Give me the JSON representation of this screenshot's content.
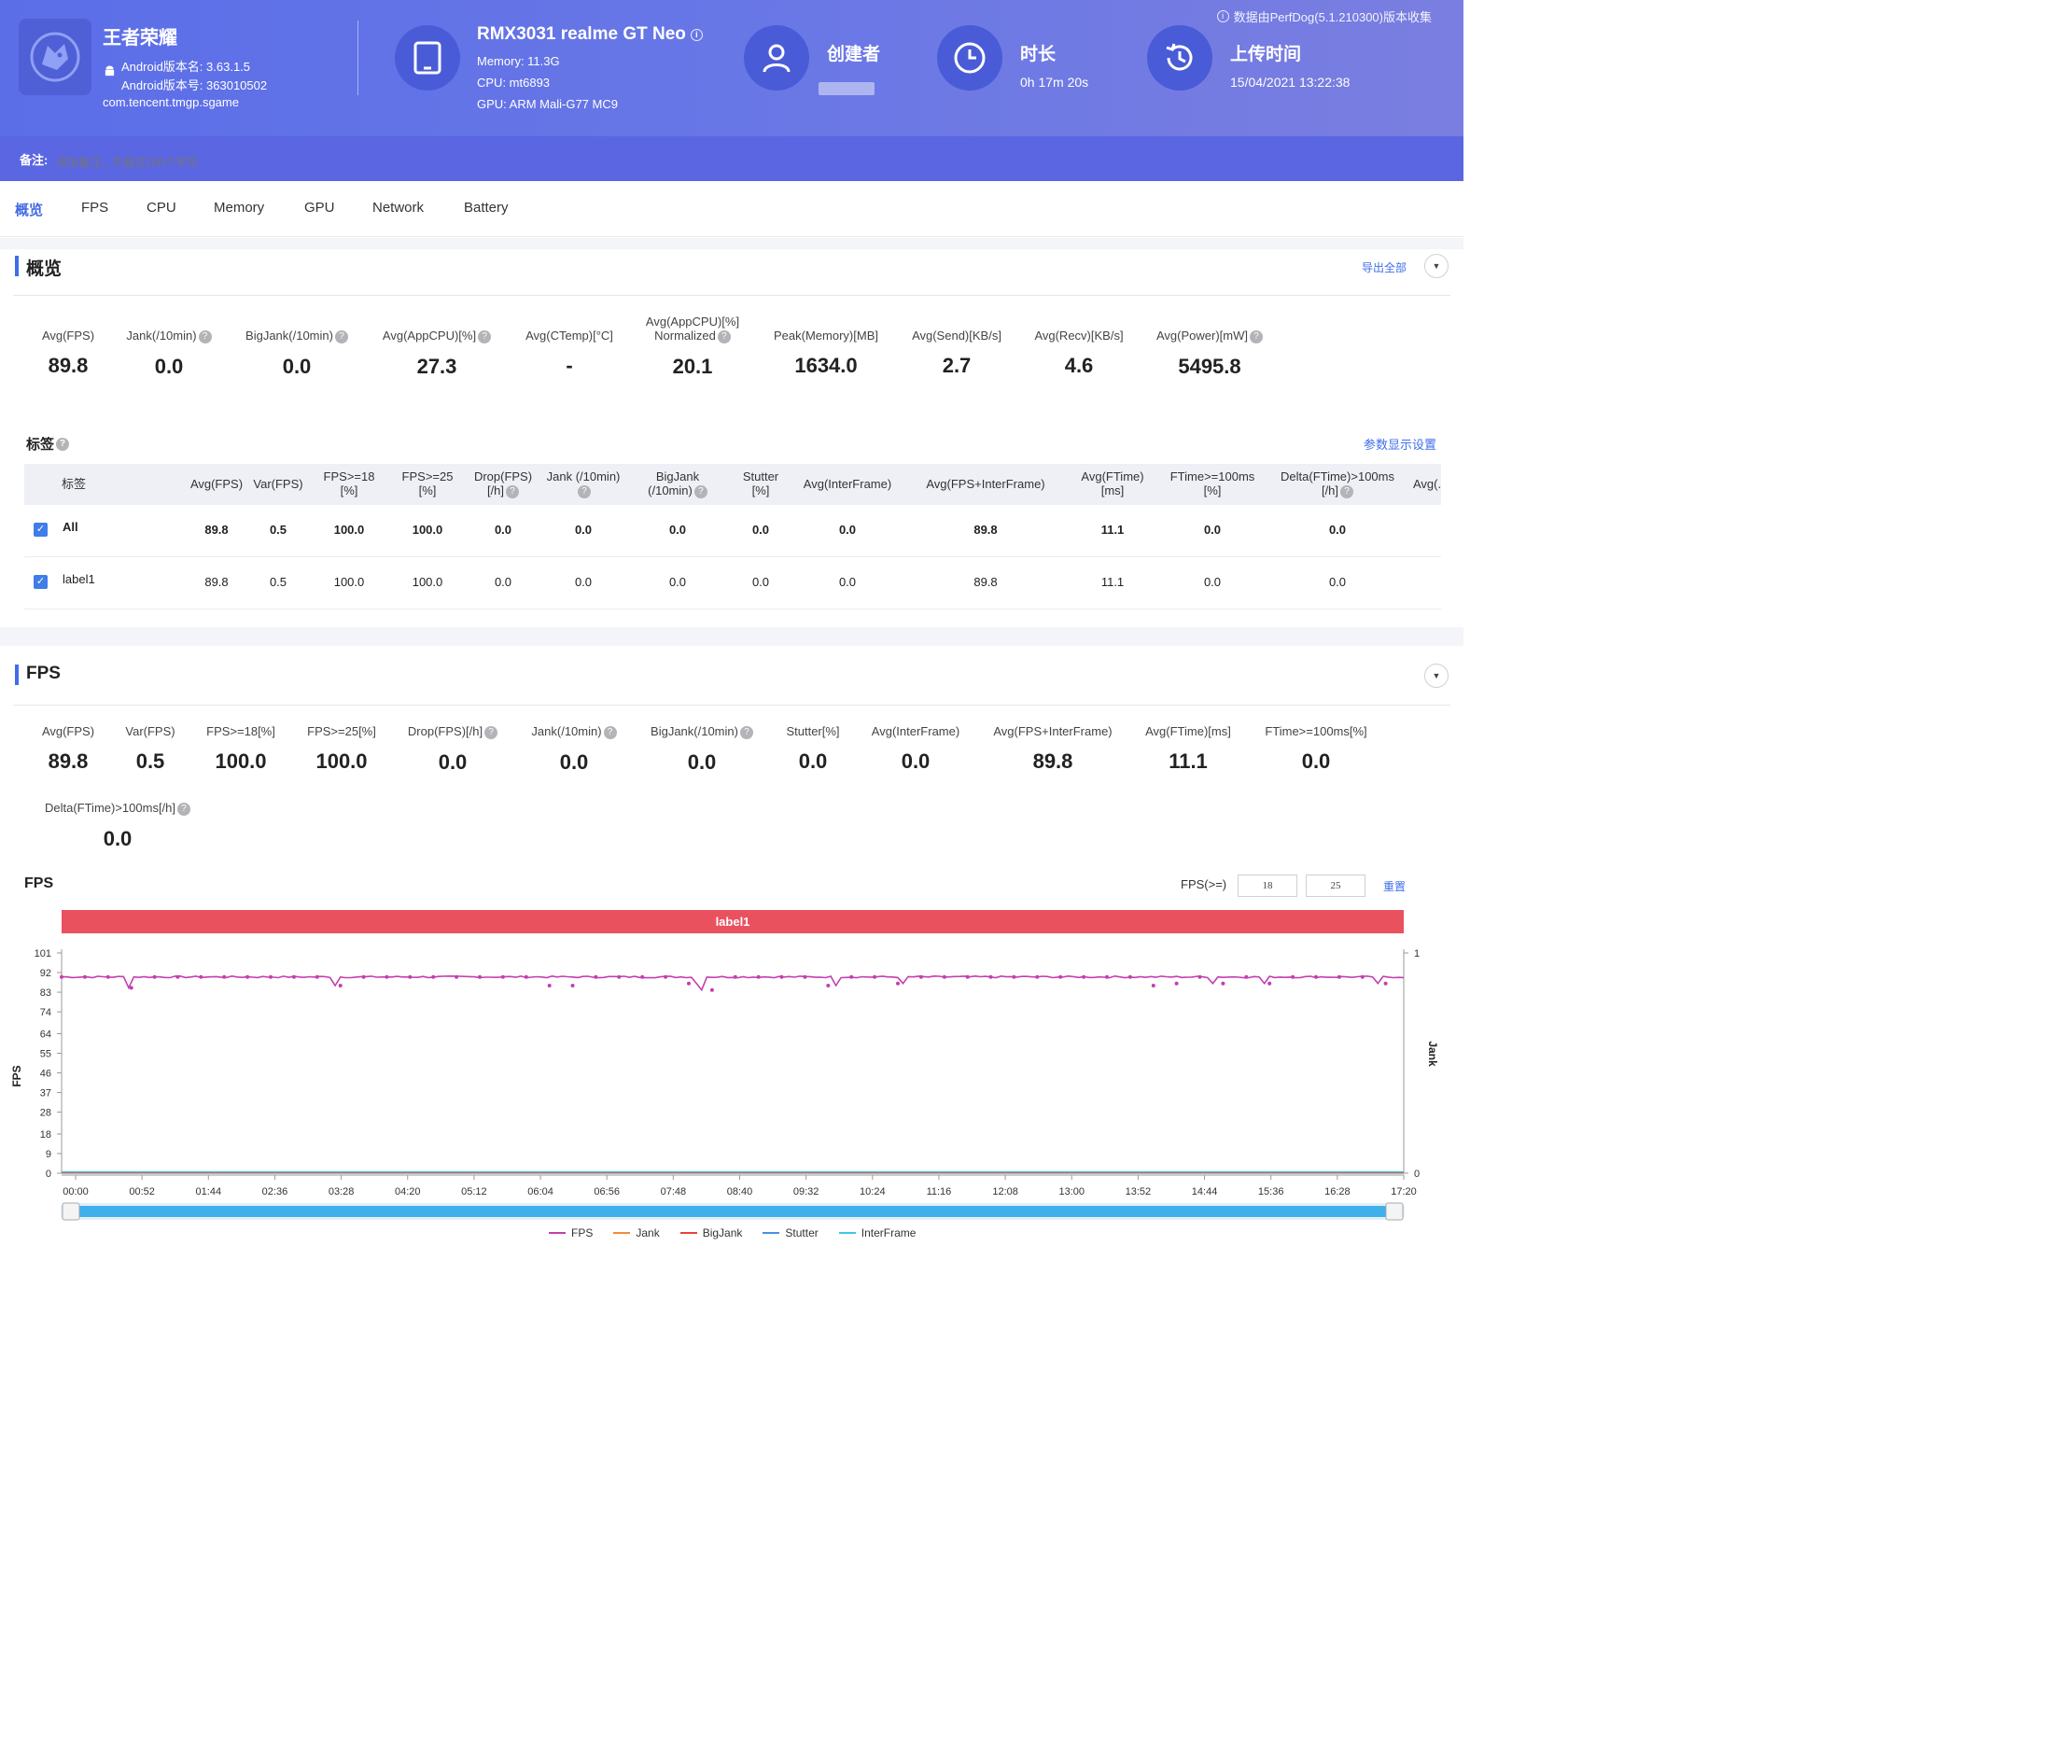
{
  "header": {
    "app_name": "王者荣耀",
    "version_name": "Android版本名: 3.63.1.5",
    "version_code": "Android版本号: 363010502",
    "package": "com.tencent.tmgp.sgame",
    "device_model": "RMX3031 realme GT Neo",
    "memory": "Memory: 11.3G",
    "cpu": "CPU: mt6893",
    "gpu": "GPU: ARM Mali-G77 MC9",
    "creator_label": "创建者",
    "duration_label": "时长",
    "duration_value": "0h 17m 20s",
    "upload_label": "上传时间",
    "upload_value": "15/04/2021 13:22:38",
    "notice": "数据由PerfDog(5.1.210300)版本收集",
    "note_label": "备注:",
    "note_placeholder": "添加备注，不超过200个字符"
  },
  "tabs": [
    "概览",
    "FPS",
    "CPU",
    "Memory",
    "GPU",
    "Network",
    "Battery"
  ],
  "overview": {
    "title": "概览",
    "export_all": "导出全部",
    "stats": [
      {
        "label": "Avg(FPS)",
        "value": "89.8"
      },
      {
        "label": "Jank(/10min)",
        "value": "0.0"
      },
      {
        "label": "BigJank(/10min)",
        "value": "0.0"
      },
      {
        "label": "Avg(AppCPU)[%]",
        "value": "27.3"
      },
      {
        "label": "Avg(CTemp)[°C]",
        "value": "-"
      },
      {
        "label": "Avg(AppCPU)[%]",
        "label2": "Normalized",
        "value": "20.1"
      },
      {
        "label": "Peak(Memory)[MB]",
        "value": "1634.0"
      },
      {
        "label": "Avg(Send)[KB/s]",
        "value": "2.7"
      },
      {
        "label": "Avg(Recv)[KB/s]",
        "value": "4.6"
      },
      {
        "label": "Avg(Power)[mW]",
        "value": "5495.8"
      }
    ],
    "tags_title": "标签",
    "display_settings": "参数显示设置",
    "table": {
      "columns": [
        "标签",
        "Avg(FPS)",
        "Var(FPS)",
        "FPS>=18\n[%]",
        "FPS>=25\n[%]",
        "Drop(FPS)\n[/h]",
        "Jank (/10min)",
        "BigJank\n(/10min)",
        "Stutter\n[%]",
        "Avg(InterFrame)",
        "Avg(FPS+InterFrame)",
        "Avg(FTime)\n[ms]",
        "FTime>=100ms\n[%]",
        "Delta(FTime)>100ms\n[/h]",
        "Avg(."
      ],
      "rows": [
        [
          "All",
          "89.8",
          "0.5",
          "100.0",
          "100.0",
          "0.0",
          "0.0",
          "0.0",
          "0.0",
          "0.0",
          "89.8",
          "11.1",
          "0.0",
          "0.0"
        ],
        [
          "label1",
          "89.8",
          "0.5",
          "100.0",
          "100.0",
          "0.0",
          "0.0",
          "0.0",
          "0.0",
          "0.0",
          "89.8",
          "11.1",
          "0.0",
          "0.0"
        ]
      ]
    }
  },
  "fps_section": {
    "title": "FPS",
    "stats": [
      {
        "label": "Avg(FPS)",
        "value": "89.8"
      },
      {
        "label": "Var(FPS)",
        "value": "0.5"
      },
      {
        "label": "FPS>=18[%]",
        "value": "100.0"
      },
      {
        "label": "FPS>=25[%]",
        "value": "100.0"
      },
      {
        "label": "Drop(FPS)[/h]",
        "value": "0.0"
      },
      {
        "label": "Jank(/10min)",
        "value": "0.0"
      },
      {
        "label": "BigJank(/10min)",
        "value": "0.0"
      },
      {
        "label": "Stutter[%]",
        "value": "0.0"
      },
      {
        "label": "Avg(InterFrame)",
        "value": "0.0"
      },
      {
        "label": "Avg(FPS+InterFrame)",
        "value": "89.8"
      },
      {
        "label": "Avg(FTime)[ms]",
        "value": "11.1"
      },
      {
        "label": "FTime>=100ms[%]",
        "value": "0.0"
      },
      {
        "label": "Delta(FTime)>100ms[/h]",
        "value": "0.0"
      }
    ],
    "chart_title": "FPS",
    "fps_threshold_label": "FPS(>=)",
    "fps_threshold_1": "18",
    "fps_threshold_2": "25",
    "reset": "重置",
    "label_bar": "label1"
  },
  "colors": {
    "accent": "#3f6ee8",
    "header_bg": "#5b6ee8",
    "label_bar": "#e9515f",
    "fps_line": "#c23fb0",
    "jank_line": "#f08c3a",
    "bigjank_line": "#e8443a",
    "stutter_line": "#4a90e2",
    "interframe_line": "#3ec8e0",
    "slider": "#3fb0ec"
  },
  "chart_data": {
    "type": "line",
    "title": "FPS",
    "xlabel": "",
    "ylabel": "FPS",
    "y2label": "Jank",
    "ylim": [
      0,
      101
    ],
    "y2lim": [
      0,
      1
    ],
    "yticks": [
      "0",
      "9",
      "18",
      "28",
      "37",
      "46",
      "55",
      "64",
      "74",
      "83",
      "92",
      "101"
    ],
    "y2ticks": [
      "0",
      "1"
    ],
    "xticks": [
      "00:00",
      "00:52",
      "01:44",
      "02:36",
      "03:28",
      "04:20",
      "05:12",
      "06:04",
      "06:56",
      "07:48",
      "08:40",
      "09:32",
      "10:24",
      "11:16",
      "12:08",
      "13:00",
      "13:52",
      "14:44",
      "15:36",
      "16:28",
      "17:20"
    ],
    "grid": false,
    "legend_position": "bottom",
    "series": [
      {
        "name": "FPS",
        "color": "#c23fb0",
        "baseline": 90,
        "dips": [
          [
            52,
            85
          ],
          [
            212,
            86
          ],
          [
            382,
            86
          ],
          [
            398,
            86
          ],
          [
            492,
            87
          ],
          [
            496,
            84
          ],
          [
            601,
            86
          ],
          [
            652,
            87
          ],
          [
            850,
            86
          ],
          [
            858,
            87
          ],
          [
            892,
            87
          ],
          [
            932,
            87
          ],
          [
            1021,
            87
          ]
        ]
      },
      {
        "name": "Jank",
        "color": "#f08c3a",
        "values": [
          0
        ]
      },
      {
        "name": "BigJank",
        "color": "#e8443a",
        "values": [
          0
        ]
      },
      {
        "name": "Stutter",
        "color": "#4a90e2",
        "values": [
          0
        ]
      },
      {
        "name": "InterFrame",
        "color": "#3ec8e0",
        "values": [
          0
        ]
      }
    ],
    "duration_seconds": 1040
  }
}
